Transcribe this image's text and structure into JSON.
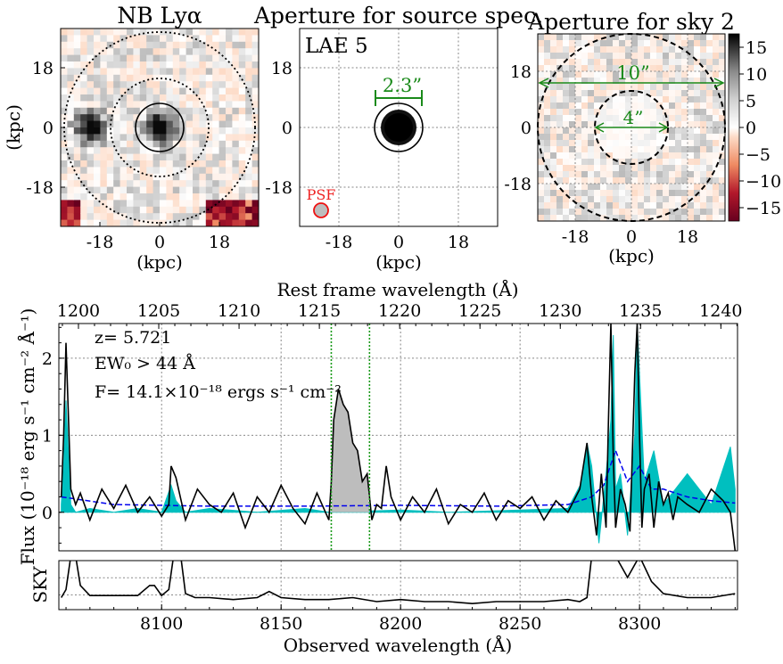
{
  "panels": {
    "nb": {
      "title": "NB Lyα",
      "xlabel": "(kpc)",
      "ylabel": "(kpc)",
      "ticks": [
        "-18",
        "0",
        "18"
      ]
    },
    "src": {
      "title": "Aperture for source spec.",
      "xlabel": "(kpc)",
      "label": "LAE 5",
      "aperture": "2.3”",
      "psf": "PSF",
      "ticks": [
        "-18",
        "0",
        "18"
      ]
    },
    "sky": {
      "title": "Aperture for sky 2",
      "xlabel": "(kpc)",
      "outer": "10”",
      "inner": "4”",
      "ticks": [
        "-18",
        "0",
        "18"
      ]
    }
  },
  "colorbar": {
    "ticks": [
      "15",
      "10",
      "5",
      "0",
      "−5",
      "−10",
      "−15"
    ],
    "range": [
      -17.5,
      17.5
    ]
  },
  "spectrum": {
    "top_axis_label": "Rest frame wavelength (Å)",
    "top_ticks": [
      "1200",
      "1205",
      "1210",
      "1215",
      "1220",
      "1225",
      "1230",
      "1235",
      "1240"
    ],
    "bottom_axis_label": "Observed wavelength (Å)",
    "bottom_ticks": [
      "8100",
      "8150",
      "8200",
      "8250",
      "8300"
    ],
    "ylabel": "Flux (10⁻¹⁸ erg s⁻¹ cm⁻² Å⁻¹)",
    "yticks": [
      "0",
      "1",
      "2"
    ],
    "sky_label": "SKY",
    "z_text": "z= 5.721",
    "ew_text": "EW₀ > 44 Å",
    "flux_text": "F= 14.1×10⁻¹⁸ ergs s⁻¹ cm⁻²"
  },
  "chart_data": [
    {
      "type": "heatmap",
      "title": "NB Lyα",
      "xlabel": "(kpc)",
      "ylabel": "(kpc)",
      "xlim": [
        -30,
        30
      ],
      "ylim": [
        -30,
        30
      ],
      "sources_kpc": [
        {
          "x": 0,
          "y": 0,
          "peak": 17
        },
        {
          "x": -21,
          "y": 0,
          "peak": 15
        }
      ],
      "apertures_kpc": [
        {
          "r": 7,
          "style": "solid"
        },
        {
          "r": 14,
          "style": "dotted"
        },
        {
          "r": 28,
          "style": "dotted"
        }
      ]
    },
    {
      "type": "heatmap",
      "title": "Aperture for source spec.",
      "label": "LAE 5",
      "xlim": [
        -30,
        30
      ],
      "ylim": [
        -30,
        30
      ],
      "aperture_diameter": "2.3”",
      "psf_position_kpc": {
        "x": -23,
        "y": -25
      }
    },
    {
      "type": "heatmap",
      "title": "Aperture for sky 2",
      "xlim": [
        -30,
        30
      ],
      "ylim": [
        -30,
        30
      ],
      "annulus": {
        "inner_diameter": "4”",
        "outer_diameter": "10”"
      },
      "colorbar_range": [
        -17.5,
        17.5
      ]
    },
    {
      "type": "line",
      "title": "",
      "xlabel": "Observed wavelength (Å)",
      "ylabel": "Flux (10^-18 erg s^-1 cm^-2 Å^-1)",
      "xlim": [
        8057,
        8341
      ],
      "ylim": [
        -0.5,
        2.45
      ],
      "redshift": 5.721,
      "line_region_observed": [
        8171,
        8187
      ],
      "series": [
        {
          "name": "source spectrum",
          "color": "#000000",
          "x": [
            8058,
            8059,
            8060,
            8062,
            8064,
            8066,
            8070,
            8075,
            8080,
            8085,
            8090,
            8095,
            8100,
            8103,
            8104,
            8106,
            8110,
            8115,
            8120,
            8125,
            8130,
            8135,
            8140,
            8145,
            8150,
            8155,
            8160,
            8165,
            8170,
            8171,
            8172,
            8174,
            8176,
            8178,
            8180,
            8182,
            8184,
            8186,
            8188,
            8190,
            8192,
            8194,
            8196,
            8200,
            8205,
            8210,
            8215,
            8220,
            8225,
            8230,
            8235,
            8240,
            8245,
            8250,
            8255,
            8260,
            8265,
            8270,
            8275,
            8278,
            8280,
            8282,
            8284,
            8286,
            8287,
            8288,
            8289,
            8290,
            8292,
            8294,
            8296,
            8298,
            8299,
            8300,
            8301,
            8302,
            8304,
            8306,
            8308,
            8310,
            8312,
            8314,
            8316,
            8320,
            8325,
            8330,
            8335,
            8338,
            8340
          ],
          "y": [
            0.2,
            1.0,
            2.2,
            0.3,
            0.1,
            0.25,
            -0.1,
            0.3,
            0.05,
            0.35,
            0.0,
            0.2,
            -0.05,
            0.1,
            0.6,
            0.45,
            -0.1,
            0.3,
            0.1,
            0.0,
            0.25,
            -0.2,
            0.2,
            0.0,
            0.35,
            0.05,
            -0.15,
            0.25,
            -0.1,
            0.4,
            1.2,
            1.6,
            1.4,
            1.3,
            0.9,
            0.8,
            0.4,
            0.5,
            -0.1,
            0.1,
            0.05,
            0.6,
            0.2,
            -0.1,
            0.2,
            0.0,
            0.3,
            -0.15,
            0.1,
            0.0,
            0.25,
            -0.1,
            0.15,
            0.05,
            0.2,
            -0.1,
            0.15,
            0.0,
            0.3,
            0.9,
            0.2,
            -0.3,
            0.5,
            -0.2,
            1.2,
            2.45,
            0.7,
            -0.2,
            0.3,
            0.1,
            -0.25,
            1.8,
            2.45,
            1.0,
            -0.2,
            0.3,
            0.5,
            -0.2,
            0.4,
            0.1,
            0.25,
            -0.1,
            0.2,
            0.1,
            0.0,
            0.3,
            0.15,
            0.0,
            -0.5
          ]
        },
        {
          "name": "sky spectrum",
          "color": "#00bfbf",
          "x": [
            8058,
            8059,
            8060,
            8062,
            8064,
            8070,
            8080,
            8090,
            8100,
            8104,
            8106,
            8110,
            8120,
            8140,
            8160,
            8170,
            8200,
            8220,
            8250,
            8270,
            8276,
            8278,
            8280,
            8283,
            8286,
            8288,
            8289,
            8290,
            8292,
            8295,
            8298,
            8299,
            8300,
            8302,
            8306,
            8310,
            8315,
            8320,
            8330,
            8338,
            8340
          ],
          "y": [
            0.1,
            0.6,
            1.45,
            0.1,
            0.0,
            0.05,
            0.0,
            0.05,
            0.0,
            0.35,
            0.15,
            0.0,
            0.05,
            0.0,
            0.05,
            0.0,
            0.03,
            0.0,
            0.03,
            0.05,
            0.4,
            0.9,
            0.6,
            -0.4,
            0.5,
            1.2,
            2.3,
            0.3,
            0.5,
            -0.3,
            1.0,
            2.45,
            1.8,
            0.4,
            0.8,
            0.1,
            0.3,
            0.5,
            0.1,
            0.85,
            0.3
          ]
        },
        {
          "name": "noise",
          "color": "#0000ee",
          "style": "dashed",
          "x": [
            8058,
            8080,
            8120,
            8160,
            8200,
            8240,
            8270,
            8280,
            8285,
            8290,
            8295,
            8300,
            8305,
            8310,
            8320,
            8330,
            8340
          ],
          "y": [
            0.2,
            0.1,
            0.08,
            0.08,
            0.09,
            0.08,
            0.1,
            0.2,
            0.35,
            0.8,
            0.4,
            0.6,
            0.3,
            0.3,
            0.2,
            0.15,
            0.12
          ]
        },
        {
          "name": "SKY",
          "color": "#000000",
          "x": [
            8058,
            8060,
            8062,
            8064,
            8066,
            8070,
            8080,
            8090,
            8095,
            8097,
            8100,
            8103,
            8105,
            8108,
            8110,
            8114,
            8120,
            8130,
            8140,
            8145,
            8150,
            8160,
            8170,
            8180,
            8190,
            8200,
            8210,
            8220,
            8230,
            8240,
            8250,
            8260,
            8270,
            8275,
            8278,
            8280,
            8285,
            8290,
            8295,
            8300,
            8305,
            8310,
            8320,
            8330,
            8340
          ],
          "y": [
            0.3,
            0.5,
            1.0,
            1.0,
            0.6,
            0.35,
            0.35,
            0.35,
            0.6,
            0.6,
            0.35,
            0.5,
            1.0,
            1.0,
            0.4,
            0.3,
            0.3,
            0.25,
            0.3,
            0.45,
            0.3,
            0.25,
            0.25,
            0.3,
            0.2,
            0.25,
            0.2,
            0.2,
            0.15,
            0.2,
            0.2,
            0.2,
            0.25,
            0.2,
            0.3,
            1.0,
            1.0,
            1.0,
            0.8,
            1.0,
            0.7,
            0.4,
            0.3,
            0.3,
            0.4
          ]
        }
      ]
    }
  ]
}
